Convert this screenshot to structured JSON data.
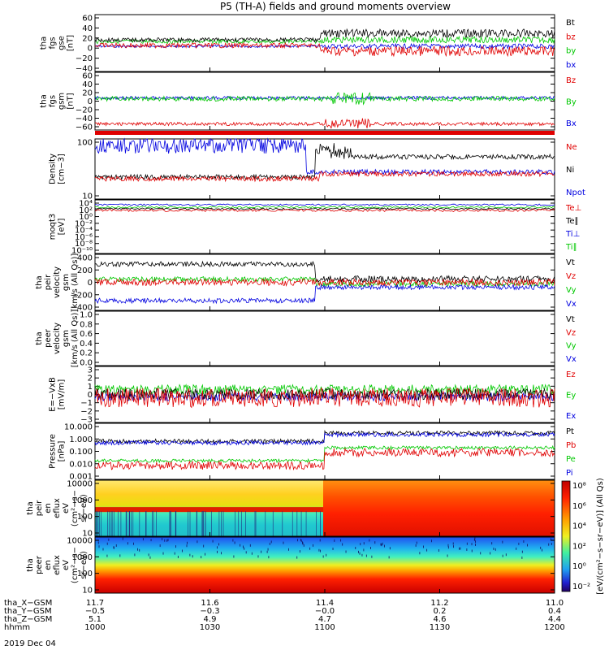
{
  "title": "P5 (TH-A) fields and ground moments overview",
  "date": "2019 Dec 04",
  "colors": {
    "black": "#000000",
    "red": "#e00000",
    "green": "#00c800",
    "blue": "#0000e0"
  },
  "chart_data": [
    {
      "type": "line",
      "id": "fgs_gse",
      "ylabel": [
        "tha",
        "fgs",
        "gse",
        "[nT]"
      ],
      "yticks": [
        "60",
        "40",
        "20",
        "0",
        "−20",
        "−40"
      ],
      "ylim": [
        -40,
        60
      ],
      "series": [
        {
          "name": "Bt",
          "color": "black"
        },
        {
          "name": "bz",
          "color": "red"
        },
        {
          "name": "by",
          "color": "green"
        },
        {
          "name": "bx",
          "color": "blue"
        }
      ]
    },
    {
      "type": "line",
      "id": "fgs_gsm",
      "ylabel": [
        "tha",
        "fgs",
        "gsm",
        "[nT]"
      ],
      "yticks": [
        "60",
        "40",
        "20",
        "0",
        "−20",
        "−40",
        "−60"
      ],
      "ylim": [
        -60,
        60
      ],
      "series": [
        {
          "name": "Bz",
          "color": "red"
        },
        {
          "name": "By",
          "color": "green"
        },
        {
          "name": "Bx",
          "color": "blue"
        }
      ]
    },
    {
      "type": "line",
      "id": "density",
      "ylabel": [
        "Density",
        "[cm−3]"
      ],
      "yticks": [
        "100",
        "10"
      ],
      "log": true,
      "series": [
        {
          "name": "Ne",
          "color": "red"
        },
        {
          "name": "Ni",
          "color": "black"
        },
        {
          "name": "Npot",
          "color": "blue"
        }
      ]
    },
    {
      "type": "line",
      "id": "temp",
      "ylabel": [
        "moqt3",
        "[eV]"
      ],
      "yticks": [
        "10⁴",
        "10²",
        "10⁰",
        "10⁻²",
        "10⁻⁴",
        "10⁻⁶",
        "10⁻⁸",
        "10⁻¹⁰"
      ],
      "log": true,
      "series": [
        {
          "name": "Te⊥",
          "color": "red"
        },
        {
          "name": "Te∥",
          "color": "black"
        },
        {
          "name": "Ti⊥",
          "color": "blue"
        },
        {
          "name": "Ti∥",
          "color": "green"
        }
      ]
    },
    {
      "type": "line",
      "id": "peir_vel",
      "ylabel": [
        "tha",
        "peir",
        "velocity",
        "gsm",
        "[km/s (All Qs)]"
      ],
      "yticks": [
        "400",
        "200",
        "0",
        "−200",
        "−400"
      ],
      "ylim": [
        -400,
        400
      ],
      "series": [
        {
          "name": "Vt",
          "color": "black"
        },
        {
          "name": "Vz",
          "color": "red"
        },
        {
          "name": "Vy",
          "color": "green"
        },
        {
          "name": "Vx",
          "color": "blue"
        }
      ]
    },
    {
      "type": "line",
      "id": "peer_vel",
      "ylabel": [
        "tha",
        "peer",
        "velocity",
        "gsm",
        "[km/s (All Qs)]"
      ],
      "yticks": [
        "1.0",
        "0.8",
        "0.6",
        "0.4",
        "0.2",
        "0.0"
      ],
      "ylim": [
        0,
        1
      ],
      "series": [
        {
          "name": "Vt",
          "color": "black"
        },
        {
          "name": "Vz",
          "color": "red"
        },
        {
          "name": "Vy",
          "color": "green"
        },
        {
          "name": "Vx",
          "color": "blue"
        }
      ]
    },
    {
      "type": "line",
      "id": "efield",
      "ylabel": [
        "E=−VxB",
        "[mV/m]"
      ],
      "yticks": [
        "3",
        "2",
        "1",
        "0",
        "−1",
        "−2",
        "−3"
      ],
      "ylim": [
        -3,
        3
      ],
      "series": [
        {
          "name": "Ez",
          "color": "red"
        },
        {
          "name": "Ey",
          "color": "green"
        },
        {
          "name": "Ex",
          "color": "blue"
        }
      ]
    },
    {
      "type": "line",
      "id": "pressure",
      "ylabel": [
        "Pressure",
        "[nPa]"
      ],
      "yticks": [
        "10.000",
        "1.000",
        "0.100",
        "0.010",
        "0.001"
      ],
      "log": true,
      "series": [
        {
          "name": "Pt",
          "color": "black"
        },
        {
          "name": "Pb",
          "color": "red"
        },
        {
          "name": "Pe",
          "color": "green"
        },
        {
          "name": "Pi",
          "color": "blue"
        }
      ]
    },
    {
      "type": "heatmap",
      "id": "peir_en",
      "ylabel": [
        "tha",
        "peir",
        "en",
        "eflux",
        "eV",
        "(cm²−s−",
        "sr−eV)"
      ],
      "yticks": [
        "10000",
        "1000",
        "100",
        "10"
      ],
      "log": true
    },
    {
      "type": "heatmap",
      "id": "peer_en",
      "ylabel": [
        "tha",
        "peer",
        "en",
        "eflux",
        "eV",
        "(cm²−s−",
        "sr−eV)"
      ],
      "yticks": [
        "10000",
        "1000",
        "100",
        "10"
      ],
      "log": true
    }
  ],
  "colorbar": {
    "ticks": [
      "10⁸",
      "10⁶",
      "10⁴",
      "10²",
      "10⁰",
      "10⁻²"
    ],
    "label": "[eV/(cm²−s−sr−eV)] (All Qs)"
  },
  "xaxis": {
    "rows": [
      {
        "label": "tha_X−GSM",
        "values": [
          "11.7",
          "11.6",
          "11.4",
          "11.2",
          "11.0"
        ]
      },
      {
        "label": "tha_Y−GSM",
        "values": [
          "−0.5",
          "−0.3",
          "−0.0",
          "0.2",
          "0.4"
        ]
      },
      {
        "label": "tha_Z−GSM",
        "values": [
          "5.1",
          "4.9",
          "4.7",
          "4.6",
          "4.4"
        ]
      },
      {
        "label": "hhmm",
        "values": [
          "1000",
          "1030",
          "1100",
          "1130",
          "1200"
        ]
      }
    ]
  }
}
